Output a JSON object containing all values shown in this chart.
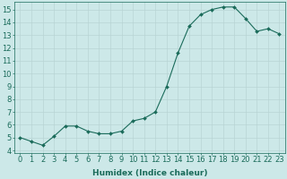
{
  "x": [
    0,
    1,
    2,
    3,
    4,
    5,
    6,
    7,
    8,
    9,
    10,
    11,
    12,
    13,
    14,
    15,
    16,
    17,
    18,
    19,
    20,
    21,
    22,
    23
  ],
  "y": [
    5.0,
    4.7,
    4.4,
    5.1,
    5.9,
    5.9,
    5.5,
    5.3,
    5.3,
    5.5,
    6.3,
    6.5,
    7.0,
    9.0,
    11.6,
    13.7,
    14.6,
    15.0,
    15.2,
    15.2,
    14.3,
    13.3,
    13.5,
    13.1
  ],
  "line_color": "#1a6b5a",
  "marker": "D",
  "marker_size": 2.0,
  "bg_color": "#cce8e8",
  "grid_major_color": "#b8d4d4",
  "grid_minor_color": "#d4e8e8",
  "xlabel": "Humidex (Indice chaleur)",
  "xlabel_fontsize": 6.5,
  "tick_fontsize": 6.0,
  "ylim": [
    3.8,
    15.6
  ],
  "xlim": [
    -0.5,
    23.5
  ],
  "yticks": [
    4,
    5,
    6,
    7,
    8,
    9,
    10,
    11,
    12,
    13,
    14,
    15
  ],
  "xticks": [
    0,
    1,
    2,
    3,
    4,
    5,
    6,
    7,
    8,
    9,
    10,
    11,
    12,
    13,
    14,
    15,
    16,
    17,
    18,
    19,
    20,
    21,
    22,
    23
  ]
}
